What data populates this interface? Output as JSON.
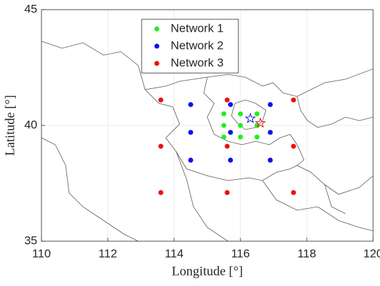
{
  "chart_data": {
    "type": "scatter",
    "xlabel": "Longitude [°]",
    "ylabel": "Latitude [°]",
    "xlim": [
      110,
      120
    ],
    "ylim": [
      35,
      45
    ],
    "xticks": [
      110,
      112,
      114,
      116,
      118,
      120
    ],
    "yticks": [
      35,
      40,
      45
    ],
    "grid": true,
    "legend": "top",
    "series": [
      {
        "name": "Network 1",
        "color": "#22ee22",
        "x": [
          115.5,
          116,
          116.5,
          115.5,
          116,
          116.5,
          115.5,
          116,
          116.5
        ],
        "values": [
          40.5,
          40.5,
          40.5,
          40,
          40,
          40,
          39.5,
          39.5,
          39.5
        ]
      },
      {
        "name": "Network 2",
        "color": "#1010ee",
        "x": [
          114.5,
          115.7,
          116.9,
          114.5,
          115.7,
          116.9,
          114.5,
          115.7,
          116.9
        ],
        "values": [
          40.9,
          40.9,
          40.9,
          39.7,
          39.7,
          39.7,
          38.5,
          38.5,
          38.5
        ]
      },
      {
        "name": "Network 3",
        "color": "#ee1010",
        "x": [
          113.6,
          115.6,
          117.6,
          113.6,
          115.6,
          117.6,
          113.6,
          115.6,
          117.6
        ],
        "values": [
          41.1,
          41.1,
          41.1,
          39.1,
          39.1,
          39.1,
          37.1,
          37.1,
          37.1
        ]
      }
    ],
    "stars": [
      {
        "color": "#1010ee",
        "x": 116.3,
        "y": 40.3
      },
      {
        "color": "#ee1010",
        "x": 116.6,
        "y": 40.1
      }
    ]
  }
}
